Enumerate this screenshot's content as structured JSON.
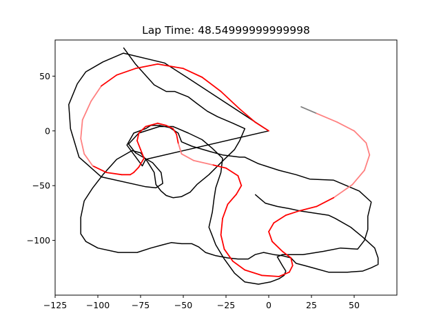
{
  "chart_data": {
    "type": "line",
    "title": "Lap Time: 48.54999999999998",
    "xlabel": "",
    "ylabel": "",
    "xlim": [
      -125,
      75
    ],
    "ylim": [
      -150,
      83
    ],
    "xticks": [
      -125,
      -100,
      -75,
      -50,
      -25,
      0,
      25,
      50
    ],
    "yticks": [
      50,
      0,
      -50,
      -100
    ],
    "xtick_labels": [
      "−125",
      "−100",
      "−75",
      "−50",
      "−25",
      "0",
      "25",
      "50"
    ],
    "ytick_labels": [
      "50",
      "0",
      "−50",
      "−100"
    ],
    "grid": false,
    "legend": "none",
    "colors": {
      "boundary": "#000000",
      "path_fast": "#ff0000",
      "path_slow": "#ff8080",
      "path_start": "#808080"
    },
    "series": [
      {
        "role": "outer-boundary",
        "x": [
          0,
          -48,
          -61,
          -85,
          -97,
          -107,
          -112,
          -117,
          -116,
          -111,
          -98,
          -72,
          -66,
          -62,
          -63,
          -68,
          -78,
          -82,
          -76,
          -64,
          -56,
          -47,
          -39,
          -33,
          -27,
          -28,
          -31,
          -32,
          -33,
          -35,
          -33,
          -31,
          -26,
          -20,
          -14,
          -6,
          1,
          6,
          9,
          10,
          8,
          5,
          8,
          20,
          32,
          42,
          52,
          56,
          58,
          58,
          60,
          53,
          38,
          24,
          16,
          6,
          -6,
          -14,
          -17,
          -27,
          -34,
          -45,
          -51,
          -53,
          -58,
          -64,
          -69,
          -72,
          -79,
          -83,
          -74,
          -72,
          0
        ],
        "y": [
          0,
          49,
          62,
          71,
          63,
          54,
          43,
          24,
          2,
          -24,
          -42,
          -51,
          -52,
          -48,
          -38,
          -29,
          -20,
          -12,
          -2,
          4,
          4,
          -2,
          -8,
          -16,
          -25,
          -38,
          -52,
          -62,
          -74,
          -88,
          -96,
          -104,
          -117,
          -130,
          -138,
          -140,
          -138,
          -135,
          -132,
          -128,
          -123,
          -115,
          -113,
          -113,
          -110,
          -107,
          -108,
          -100,
          -90,
          -78,
          -65,
          -55,
          -45,
          -44,
          -40,
          -36,
          -30,
          -24,
          -24,
          -22,
          -19,
          -14,
          -10,
          -2,
          3,
          5,
          5,
          2,
          -2,
          -13,
          -32,
          -26,
          0
        ]
      },
      {
        "role": "inner-boundary",
        "x": [
          -85,
          -78,
          -67,
          -60,
          -55,
          -47,
          -42,
          -36,
          -30,
          -21,
          -14,
          -17,
          -20,
          -28,
          -35,
          -42,
          -46,
          -51,
          -56,
          -60,
          -63,
          -66,
          -67,
          -71,
          -75,
          -80,
          -89,
          -97,
          -103,
          -108,
          -110,
          -110,
          -107,
          -100,
          -88,
          -77,
          -69,
          -62,
          -57,
          -51,
          -45,
          -41,
          -37,
          -31,
          -24,
          -18,
          -12,
          -8,
          -3,
          3,
          8,
          13,
          16,
          21,
          28,
          35,
          46,
          55,
          60,
          64,
          64,
          62,
          55,
          48,
          39,
          35,
          18,
          12,
          5,
          -2,
          -5,
          -8
        ],
        "y": [
          76,
          61,
          42,
          36,
          36,
          31,
          25,
          18,
          13,
          7,
          2,
          -9,
          -17,
          -29,
          -40,
          -49,
          -56,
          -60,
          -61,
          -59,
          -55,
          -49,
          -38,
          -28,
          -20,
          -18,
          -26,
          -40,
          -52,
          -64,
          -79,
          -94,
          -101,
          -107,
          -111,
          -111,
          -107,
          -104,
          -102,
          -103,
          -103,
          -106,
          -111,
          -114,
          -116,
          -117,
          -117,
          -113,
          -111,
          -113,
          -114,
          -116,
          -121,
          -123,
          -126,
          -129,
          -129,
          -128,
          -125,
          -122,
          -116,
          -107,
          -97,
          -88,
          -80,
          -77,
          -73,
          -71,
          -69,
          -66,
          -62,
          -58
        ]
      },
      {
        "role": "racing-line",
        "color_by": "speed",
        "x": [
          19,
          28,
          40,
          50,
          57,
          59,
          56,
          49,
          38,
          28,
          18,
          10,
          3,
          0,
          2,
          8,
          13,
          14,
          12,
          6,
          -4,
          -14,
          -21,
          -26,
          -28,
          -27,
          -24,
          -19,
          -16,
          -18,
          -25,
          -33,
          -44,
          -51,
          -53,
          -54,
          -56,
          -60,
          -65,
          -72,
          -76,
          -77,
          -75,
          -73,
          -76,
          -79,
          -81,
          -86,
          -95,
          -103,
          -108,
          -110,
          -109,
          -104,
          -98,
          -89,
          -78,
          -65,
          -50,
          -39,
          -28,
          -17,
          -8,
          0
        ],
        "y": [
          22,
          16,
          8,
          0,
          -11,
          -22,
          -36,
          -49,
          -61,
          -69,
          -73,
          -77,
          -84,
          -92,
          -101,
          -110,
          -116,
          -123,
          -129,
          -133,
          -132,
          -127,
          -119,
          -108,
          -95,
          -80,
          -67,
          -58,
          -50,
          -41,
          -34,
          -31,
          -27,
          -21,
          -11,
          -3,
          2,
          5,
          7,
          4,
          -2,
          -9,
          -17,
          -25,
          -33,
          -38,
          -40,
          -40,
          -38,
          -32,
          -21,
          -7,
          10,
          27,
          41,
          51,
          57,
          61,
          57,
          49,
          36,
          20,
          8,
          0
        ]
      }
    ]
  }
}
